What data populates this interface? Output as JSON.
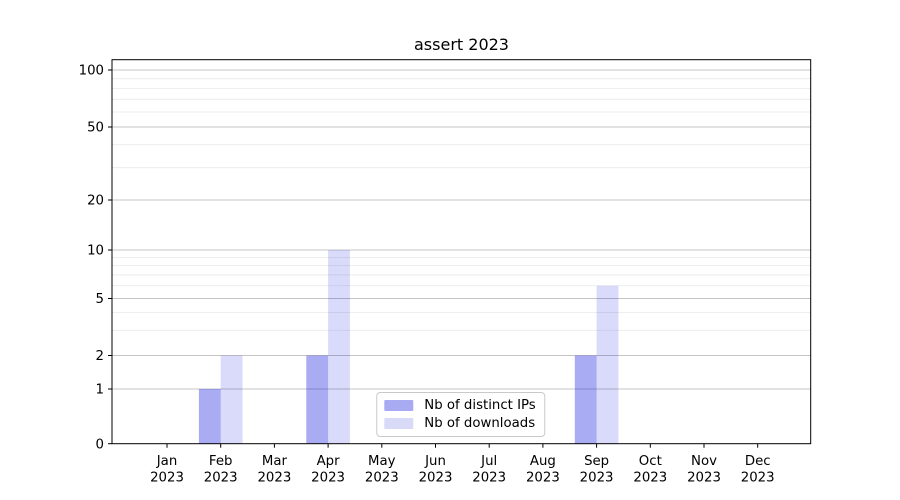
{
  "chart_data": {
    "type": "bar",
    "title": "assert 2023",
    "categories": [
      "Jan 2023",
      "Feb 2023",
      "Mar 2023",
      "Apr 2023",
      "May 2023",
      "Jun 2023",
      "Jul 2023",
      "Aug 2023",
      "Sep 2023",
      "Oct 2023",
      "Nov 2023",
      "Dec 2023"
    ],
    "series": [
      {
        "name": "Nb of distinct IPs",
        "color": "#a9abf2",
        "fill": "rgba(10,16,222,0.35)",
        "values": [
          0,
          1,
          0,
          2,
          0,
          0,
          0,
          0,
          2,
          0,
          0,
          0
        ]
      },
      {
        "name": "Nb of downloads",
        "color": "#d8daf7",
        "fill": "rgba(10,16,222,0.15)",
        "values": [
          0,
          2,
          0,
          10,
          0,
          0,
          0,
          0,
          6,
          0,
          0,
          0
        ]
      }
    ],
    "xlabel": "",
    "ylabel": "",
    "y_ticks": [
      0,
      1,
      2,
      5,
      10,
      20,
      50,
      100
    ],
    "y_minor_ticks": [
      3,
      4,
      6,
      7,
      8,
      9,
      30,
      40,
      60,
      70,
      80,
      90
    ],
    "y_scale": "symlog",
    "ylim": [
      0,
      114
    ],
    "grid": "horizontal-major-and-minor",
    "legend_position": "lower center",
    "colors": {
      "major_grid": "#c4c4c4",
      "minor_grid": "#e8e8e8",
      "spine": "#000000",
      "tick_text": "#000000"
    }
  }
}
